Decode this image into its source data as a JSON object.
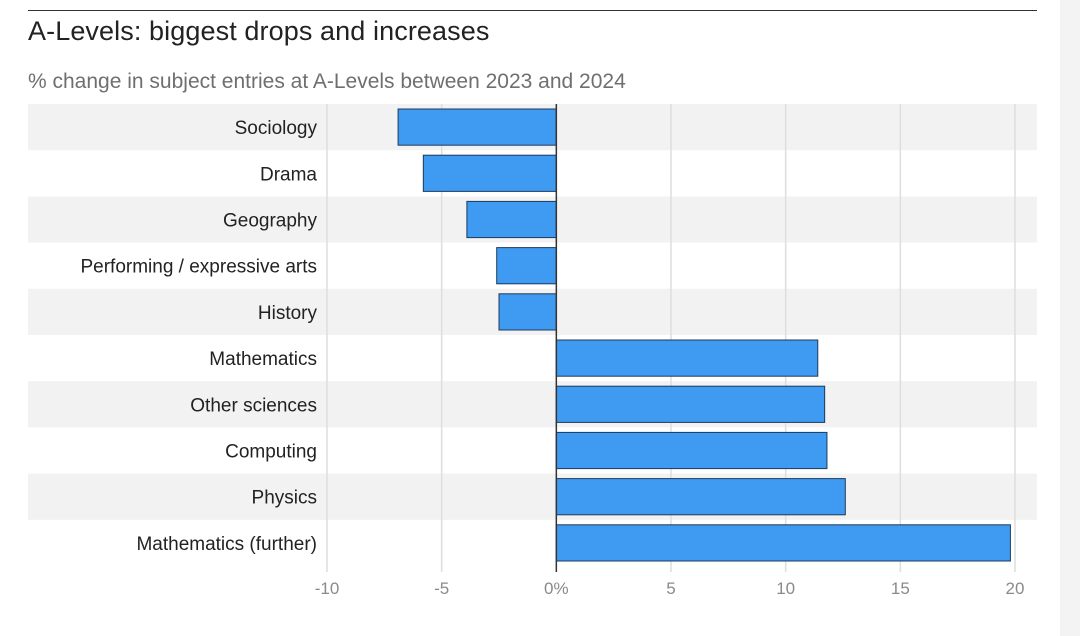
{
  "chart_data": {
    "type": "bar",
    "orientation": "horizontal",
    "title": "A-Levels: biggest drops and increases",
    "subtitle": "% change in subject entries at A-Levels between 2023 and 2024",
    "categories": [
      "Sociology",
      "Drama",
      "Geography",
      "Performing / expressive arts",
      "History",
      "Mathematics",
      "Other sciences",
      "Computing",
      "Physics",
      "Mathematics (further)"
    ],
    "values": [
      -6.9,
      -5.8,
      -3.9,
      -2.6,
      -2.5,
      11.4,
      11.7,
      11.8,
      12.6,
      19.8
    ],
    "xlim": [
      -10,
      20
    ],
    "xticks": [
      -10,
      -5,
      0,
      5,
      10,
      15,
      20
    ],
    "xtick_labels": [
      "-10",
      "-5",
      "0%",
      "5",
      "10",
      "15",
      "20"
    ],
    "xlabel": "",
    "ylabel": "",
    "grid": true,
    "bar_color": "#3f9af2",
    "bar_edge_color": "#1d3a5c",
    "row_band_color": "#f2f2f2",
    "legend": "none"
  }
}
